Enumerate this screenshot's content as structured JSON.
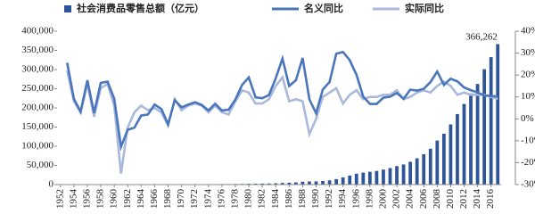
{
  "chart_data": {
    "type": "combo",
    "x": [
      1952,
      1953,
      1954,
      1955,
      1956,
      1957,
      1958,
      1959,
      1960,
      1961,
      1962,
      1963,
      1964,
      1965,
      1966,
      1967,
      1968,
      1969,
      1970,
      1971,
      1972,
      1973,
      1974,
      1975,
      1976,
      1977,
      1978,
      1979,
      1980,
      1981,
      1982,
      1983,
      1984,
      1985,
      1986,
      1987,
      1988,
      1989,
      1990,
      1991,
      1992,
      1993,
      1994,
      1995,
      1996,
      1997,
      1998,
      1999,
      2000,
      2001,
      2002,
      2003,
      2004,
      2005,
      2006,
      2007,
      2008,
      2009,
      2010,
      2011,
      2012,
      2013,
      2014,
      2015,
      2016,
      2017
    ],
    "xlim": [
      1951.5,
      2017.5
    ],
    "xticks": [
      1952,
      1954,
      1956,
      1958,
      1960,
      1962,
      1964,
      1966,
      1968,
      1970,
      1972,
      1974,
      1976,
      1978,
      1980,
      1982,
      1984,
      1986,
      1988,
      1990,
      1992,
      1994,
      1996,
      1998,
      2000,
      2002,
      2004,
      2006,
      2008,
      2010,
      2012,
      2014,
      2016
    ],
    "ylim": [
      0,
      400000
    ],
    "yticks": [
      0,
      {
        "value": 50000,
        "label": "50,000"
      },
      {
        "value": 100000,
        "label": "100,000"
      },
      {
        "value": 150000,
        "label": "150,000"
      },
      {
        "value": 200000,
        "label": "200,000"
      },
      {
        "value": 250000,
        "label": "250,000"
      },
      {
        "value": 300000,
        "label": "300,000"
      },
      {
        "value": 350000,
        "label": "350,000"
      },
      {
        "value": 400000,
        "label": "400,000"
      }
    ],
    "y2lim": [
      -30,
      40
    ],
    "y2ticks": [
      {
        "value": -30,
        "label": "-30%"
      },
      {
        "value": -20,
        "label": "-20%"
      },
      {
        "value": -10,
        "label": "-10%"
      },
      {
        "value": 0,
        "label": "0%"
      },
      {
        "value": 10,
        "label": "10%"
      },
      {
        "value": 20,
        "label": "20%"
      },
      {
        "value": 30,
        "label": "30%"
      },
      {
        "value": 40,
        "label": "40%"
      }
    ],
    "annotation": "366,262",
    "series": [
      {
        "name": "社会消费品零售总额（亿元）",
        "type": "bar",
        "color": "#2e5597",
        "values": [
          277,
          348,
          382,
          392,
          461,
          474,
          548,
          638,
          697,
          607,
          604,
          605,
          638,
          670,
          732,
          770,
          737,
          801,
          858,
          929,
          1023,
          1107,
          1164,
          1271,
          1339,
          1433,
          1559,
          1800,
          2140,
          2350,
          2570,
          2849,
          3376,
          4305,
          4950,
          5820,
          7440,
          8101,
          8300,
          9416,
          10994,
          14270,
          18623,
          23614,
          28360,
          31253,
          33378,
          35648,
          39106,
          43055,
          48136,
          52516,
          59501,
          68353,
          79145,
          93572,
          114830,
          132678,
          156998,
          183919,
          210307,
          237810,
          262394,
          300931,
          332316,
          366262
        ]
      },
      {
        "name": "名义同比",
        "type": "line",
        "axis": "y2",
        "color": "#4a76bb",
        "values": [
          null,
          25.6,
          9.1,
          3.2,
          17.6,
          2.7,
          16.4,
          17.0,
          9.2,
          -12.8,
          -5.0,
          -4.0,
          1.5,
          2.0,
          6.5,
          4.5,
          -2.5,
          8.5,
          5.3,
          6.5,
          7.6,
          6.4,
          3.8,
          6.9,
          3.8,
          4.2,
          8.8,
          15.5,
          18.9,
          9.8,
          9.4,
          10.9,
          18.5,
          27.5,
          15.0,
          17.6,
          27.8,
          8.9,
          2.5,
          13.4,
          16.8,
          29.7,
          30.5,
          26.8,
          20.1,
          10.2,
          6.8,
          6.8,
          9.7,
          10.1,
          11.8,
          9.1,
          13.3,
          12.9,
          13.7,
          16.8,
          21.6,
          15.5,
          18.3,
          17.1,
          14.3,
          13.1,
          12.0,
          10.7,
          10.4,
          10.2
        ]
      },
      {
        "name": "实际同比",
        "type": "line",
        "axis": "y2",
        "color": "#a9b9dc",
        "values": [
          null,
          22,
          8,
          3,
          16,
          1,
          14,
          16,
          6,
          -25,
          -4,
          3,
          6,
          4,
          5,
          3,
          -3,
          9,
          4,
          6,
          7,
          6,
          3,
          6,
          3,
          2,
          8,
          13,
          12,
          7,
          7,
          9,
          15,
          19,
          8,
          9,
          8,
          -7,
          0,
          10,
          12,
          14,
          7,
          11,
          13,
          9,
          10,
          10,
          11,
          11,
          13,
          9,
          10,
          12,
          13,
          12,
          15,
          17,
          15,
          11,
          12,
          11,
          11,
          11,
          10,
          9
        ]
      }
    ]
  }
}
